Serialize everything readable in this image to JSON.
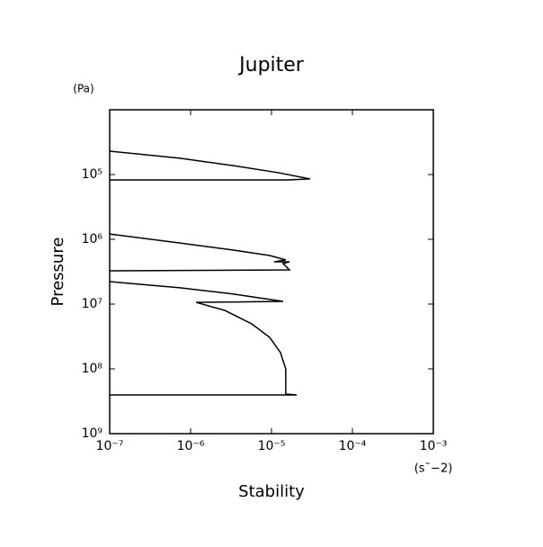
{
  "chart_data": {
    "type": "line",
    "title": "Jupiter",
    "xlabel": "Stability",
    "ylabel": "Pressure",
    "xunit": "(s¯−2)",
    "yunit": "(Pa)",
    "xlog": true,
    "ylog": true,
    "y_inverted": true,
    "color": "#000000",
    "xlim": [
      1e-07,
      0.001
    ],
    "ylim": [
      10000,
      1000000000
    ],
    "xticks": [
      {
        "value": 1e-07,
        "label": "10⁻⁷"
      },
      {
        "value": 1e-06,
        "label": "10⁻⁶"
      },
      {
        "value": 1e-05,
        "label": "10⁻⁵"
      },
      {
        "value": 0.0001,
        "label": "10⁻⁴"
      },
      {
        "value": 0.001,
        "label": "10⁻³"
      }
    ],
    "yticks": [
      {
        "value": 100000,
        "label": "10⁵"
      },
      {
        "value": 1000000,
        "label": "10⁶"
      },
      {
        "value": 10000000,
        "label": "10⁷"
      },
      {
        "value": 100000000,
        "label": "10⁸"
      },
      {
        "value": 1000000000,
        "label": "10⁹"
      }
    ],
    "x": [
      1e-07,
      7.4e-07,
      3.4e-06,
      1.23e-05,
      3e-05,
      1.58e-05,
      1e-07,
      null,
      1e-07,
      7.4e-07,
      3.4e-06,
      9.5e-06,
      1.5e-05,
      1.08e-05,
      1.67e-05,
      1.39e-05,
      1.67e-05,
      1e-07,
      null,
      1e-07,
      7.4e-07,
      3.4e-06,
      1.39e-05,
      1.17e-06,
      2.64e-06,
      5.7e-06,
      9.5e-06,
      1.29e-05,
      1.5e-05,
      1.5e-05,
      2.05e-05,
      1e-07
    ],
    "values": [
      43600,
      56000,
      73000,
      94000,
      117000,
      121000,
      121000,
      null,
      830000,
      1140000,
      1470000,
      1780000,
      2080000,
      2220000,
      2220000,
      2370000,
      2970000,
      3060000,
      null,
      4500000,
      5600000,
      7000000,
      9100000,
      9400000,
      12500000,
      20200000,
      32700000,
      56000000,
      100000000,
      245000000,
      253000000,
      253000000
    ]
  }
}
